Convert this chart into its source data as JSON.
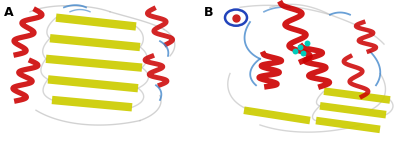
{
  "fig_width": 4.0,
  "fig_height": 1.47,
  "dpi": 100,
  "background_color": "#ffffff",
  "label_A": "A",
  "label_B": "B",
  "label_fontsize": 9,
  "label_fontweight": "bold",
  "colors": {
    "helix": "#cc0000",
    "sheet": "#cccc00",
    "loop": "#4488cc",
    "loop2": "#aaaaaa",
    "background": "#ffffff"
  }
}
